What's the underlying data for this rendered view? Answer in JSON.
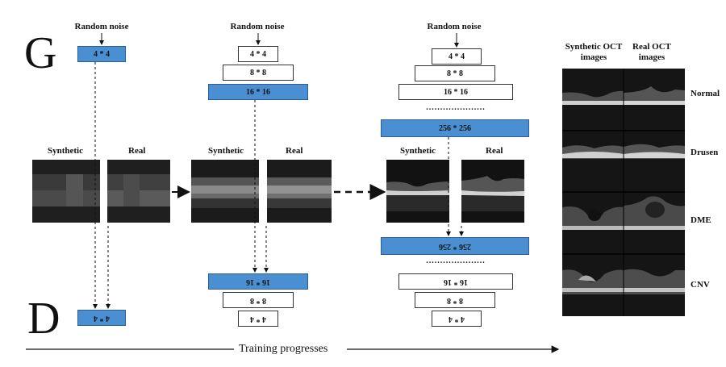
{
  "letters": {
    "g": "G",
    "d": "D"
  },
  "noise_label": "Random noise",
  "stage_labels": {
    "synthetic": "Synthetic",
    "real": "Real"
  },
  "stage1": {
    "g_boxes": [
      "4 * 4"
    ],
    "d_boxes": [
      "4 * 4"
    ]
  },
  "stage2": {
    "g_boxes": [
      "4 * 4",
      "8 * 8",
      "16 * 16"
    ],
    "d_boxes": [
      "16 * 16",
      "8 * 8",
      "4 * 4"
    ]
  },
  "stage3": {
    "g_boxes": [
      "4 * 4",
      "8 * 8",
      "16 * 16",
      "256 * 256"
    ],
    "d_boxes": [
      "256 * 256",
      "16 * 16",
      "8 * 8",
      "4 * 4"
    ],
    "dots": "....................."
  },
  "training": {
    "label": "Training progresses"
  },
  "panel": {
    "col_synthetic": "Synthetic OCT images",
    "col_real": "Real OCT images",
    "rows": [
      "Normal",
      "Drusen",
      "DME",
      "CNV"
    ]
  },
  "colors": {
    "blue": "#4a8fd2",
    "border": "#333333"
  }
}
